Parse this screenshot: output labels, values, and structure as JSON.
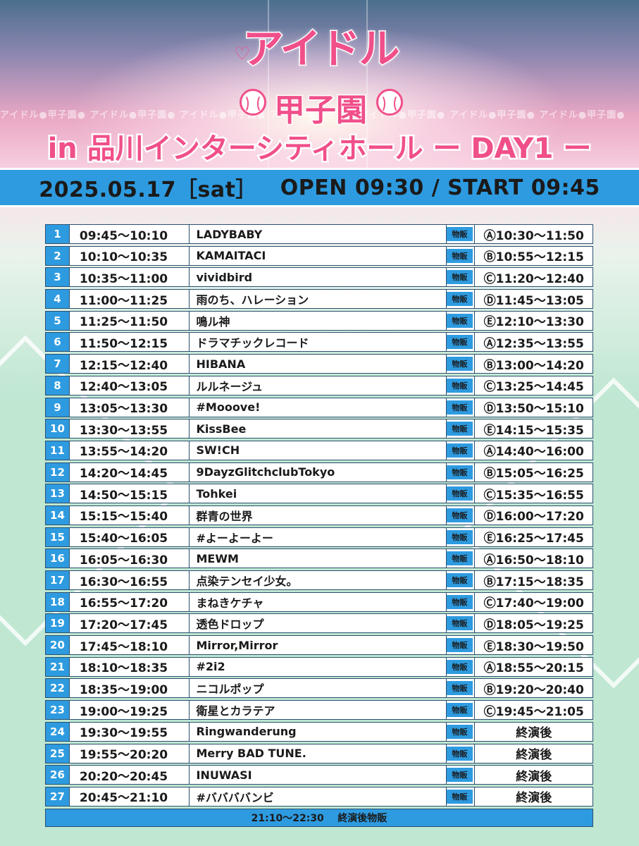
{
  "header": {
    "logo_line1": "アイドル",
    "logo_line2": "甲子園",
    "ticker_text": "アイドル●甲子園●    アイドル●甲子園●    アイドル●甲子園●    アイドル●甲子園●    アイドル●甲子園●    アイドル●甲子園●    アイドル●甲子園●",
    "subtitle": "in 品川インターシティホール ー DAY1 ー",
    "date": "2025.05.17［sat］",
    "open_start": "OPEN 09:30 / START 09:45"
  },
  "colors": {
    "accent_pink": "#f04f8a",
    "accent_blue": "#2e9be0",
    "field_green": "#bfe7d2"
  },
  "merch_tag": "物販",
  "schedule": [
    {
      "no": "1",
      "time": "09:45〜10:10",
      "artist": "LADYBABY",
      "merch": "Ⓐ10:30〜11:50"
    },
    {
      "no": "2",
      "time": "10:10〜10:35",
      "artist": "KAMAITACI",
      "merch": "Ⓑ10:55〜12:15"
    },
    {
      "no": "3",
      "time": "10:35〜11:00",
      "artist": "vividbird",
      "merch": "Ⓒ11:20〜12:40"
    },
    {
      "no": "4",
      "time": "11:00〜11:25",
      "artist": "雨のち、ハレーション",
      "merch": "Ⓓ11:45〜13:05"
    },
    {
      "no": "5",
      "time": "11:25〜11:50",
      "artist": "鳴ル神",
      "merch": "Ⓔ12:10〜13:30"
    },
    {
      "no": "6",
      "time": "11:50〜12:15",
      "artist": "ドラマチックレコード",
      "merch": "Ⓐ12:35〜13:55"
    },
    {
      "no": "7",
      "time": "12:15〜12:40",
      "artist": "HIBANA",
      "merch": "Ⓑ13:00〜14:20"
    },
    {
      "no": "8",
      "time": "12:40〜13:05",
      "artist": "ルルネージュ",
      "merch": "Ⓒ13:25〜14:45"
    },
    {
      "no": "9",
      "time": "13:05〜13:30",
      "artist": "#Mooove!",
      "merch": "Ⓓ13:50〜15:10"
    },
    {
      "no": "10",
      "time": "13:30〜13:55",
      "artist": "KissBee",
      "merch": "Ⓔ14:15〜15:35"
    },
    {
      "no": "11",
      "time": "13:55〜14:20",
      "artist": "SW!CH",
      "merch": "Ⓐ14:40〜16:00"
    },
    {
      "no": "12",
      "time": "14:20〜14:45",
      "artist": "9DayzGlitchclubTokyo",
      "merch": "Ⓑ15:05〜16:25"
    },
    {
      "no": "13",
      "time": "14:50〜15:15",
      "artist": "Tohkei",
      "merch": "Ⓒ15:35〜16:55"
    },
    {
      "no": "14",
      "time": "15:15〜15:40",
      "artist": "群青の世界",
      "merch": "Ⓓ16:00〜17:20"
    },
    {
      "no": "15",
      "time": "15:40〜16:05",
      "artist": "#よーよーよー",
      "merch": "Ⓔ16:25〜17:45"
    },
    {
      "no": "16",
      "time": "16:05〜16:30",
      "artist": "MEWM",
      "merch": "Ⓐ16:50〜18:10"
    },
    {
      "no": "17",
      "time": "16:30〜16:55",
      "artist": "点染テンセイ少女。",
      "merch": "Ⓑ17:15〜18:35"
    },
    {
      "no": "18",
      "time": "16:55〜17:20",
      "artist": "まねきケチャ",
      "merch": "Ⓒ17:40〜19:00"
    },
    {
      "no": "19",
      "time": "17:20〜17:45",
      "artist": "透色ドロップ",
      "merch": "Ⓓ18:05〜19:25"
    },
    {
      "no": "20",
      "time": "17:45〜18:10",
      "artist": "Mirror,Mirror",
      "merch": "Ⓔ18:30〜19:50"
    },
    {
      "no": "21",
      "time": "18:10〜18:35",
      "artist": "#2i2",
      "merch": "Ⓐ18:55〜20:15"
    },
    {
      "no": "22",
      "time": "18:35〜19:00",
      "artist": "ニコルポップ",
      "merch": "Ⓑ19:20〜20:40"
    },
    {
      "no": "23",
      "time": "19:00〜19:25",
      "artist": "衛星とカラテア",
      "merch": "Ⓒ19:45〜21:05"
    },
    {
      "no": "24",
      "time": "19:30〜19:55",
      "artist": "Ringwanderung",
      "merch": "終演後"
    },
    {
      "no": "25",
      "time": "19:55〜20:20",
      "artist": "Merry BAD TUNE.",
      "merch": "終演後"
    },
    {
      "no": "26",
      "time": "20:20〜20:45",
      "artist": "INUWASI",
      "merch": "終演後"
    },
    {
      "no": "27",
      "time": "20:45〜21:10",
      "artist": "#ババババンビ",
      "merch": "終演後"
    }
  ],
  "footer": {
    "time": "21:10〜22:30",
    "label": "終演後物販"
  }
}
